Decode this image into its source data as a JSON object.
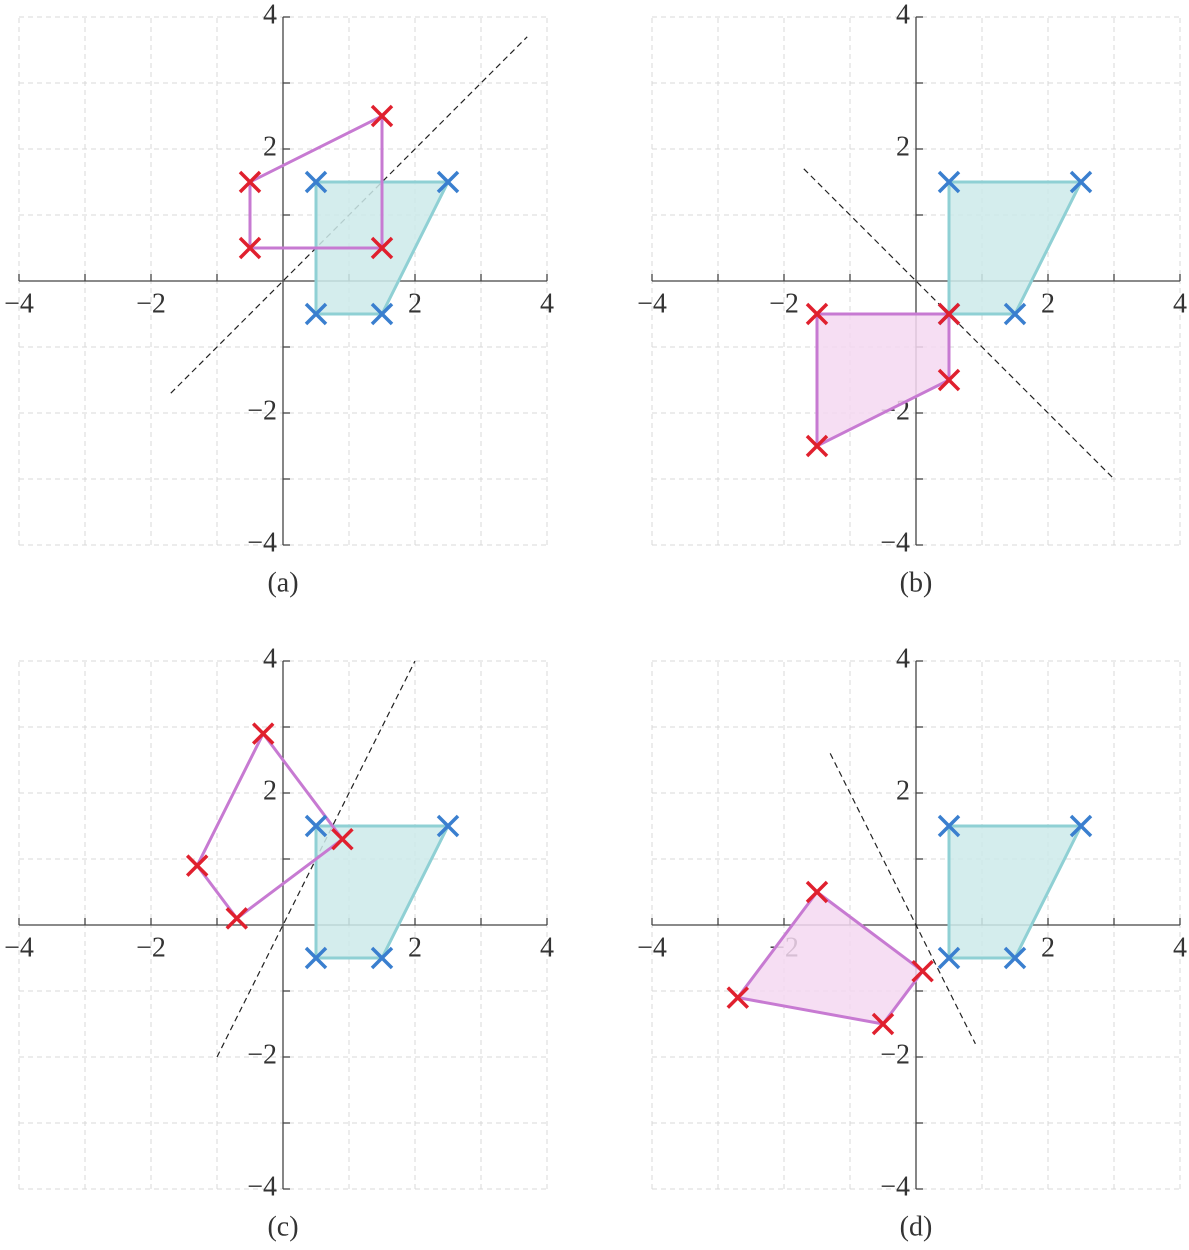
{
  "chart_data": [
    {
      "type": "scatter",
      "caption": "(a)",
      "xlim": [
        -4,
        4
      ],
      "ylim": [
        -4,
        4
      ],
      "xticks": [
        {
          "value": -4,
          "label": "−4"
        },
        {
          "value": -2,
          "label": "−2"
        },
        2,
        4
      ],
      "yticks": [
        {
          "value": -4,
          "label": "−4"
        },
        {
          "value": -2,
          "label": "−2"
        },
        2,
        4
      ],
      "grid": true,
      "grid_ticks": [
        -4,
        -3,
        -2,
        -1,
        1,
        2,
        3,
        4
      ],
      "series": [
        {
          "color": "#3a7fcf",
          "polygon_color": "#8fd0d4",
          "fill_color": "#cdeaea",
          "x": [
            0.5,
            2.5,
            1.5,
            0.5
          ],
          "y": [
            1.5,
            1.5,
            -0.5,
            -0.5
          ]
        },
        {
          "color": "#e0202e",
          "polygon_color": "#c77ad2",
          "x": [
            -0.5,
            1.5,
            1.5,
            -0.5
          ],
          "y": [
            1.5,
            2.5,
            0.5,
            0.5
          ]
        }
      ],
      "reflection_line": {
        "x": [
          -1.7,
          3.7
        ],
        "y": [
          -1.7,
          3.7
        ]
      }
    },
    {
      "type": "scatter",
      "caption": "(b)",
      "xlim": [
        -4,
        4
      ],
      "ylim": [
        -4,
        4
      ],
      "xticks": [
        {
          "value": -4,
          "label": "−4"
        },
        {
          "value": -2,
          "label": "−2"
        },
        2,
        4
      ],
      "yticks": [
        {
          "value": -4,
          "label": "−4"
        },
        {
          "value": -2,
          "label": "−2"
        },
        2,
        4
      ],
      "grid": true,
      "grid_ticks": [
        -4,
        -3,
        -2,
        -1,
        1,
        2,
        3,
        4
      ],
      "series": [
        {
          "color": "#3a7fcf",
          "polygon_color": "#8fd0d4",
          "fill_color": "#cdeaea",
          "x": [
            0.5,
            2.5,
            1.5,
            0.5
          ],
          "y": [
            1.5,
            1.5,
            -0.5,
            -0.5
          ]
        },
        {
          "color": "#e0202e",
          "polygon_color": "#c77ad2",
          "fill_color": "#f5d8f1",
          "x": [
            -1.5,
            -1.5,
            0.5,
            0.5
          ],
          "y": [
            -0.5,
            -2.5,
            -1.5,
            -0.5
          ]
        }
      ],
      "reflection_line": {
        "x": [
          -1.7,
          3
        ],
        "y": [
          1.7,
          -3
        ]
      }
    },
    {
      "type": "scatter",
      "caption": "(c)",
      "xlim": [
        -4,
        4
      ],
      "ylim": [
        -4,
        4
      ],
      "xticks": [
        {
          "value": -4,
          "label": "−4"
        },
        {
          "value": -2,
          "label": "−2"
        },
        2,
        4
      ],
      "yticks": [
        {
          "value": -4,
          "label": "−4"
        },
        {
          "value": -2,
          "label": "−2"
        },
        2,
        4
      ],
      "grid": true,
      "grid_ticks": [
        -4,
        -3,
        -2,
        -1,
        1,
        2,
        3,
        4
      ],
      "series": [
        {
          "color": "#3a7fcf",
          "polygon_color": "#8fd0d4",
          "fill_color": "#cdeaea",
          "x": [
            0.5,
            2.5,
            1.5,
            0.5
          ],
          "y": [
            1.5,
            1.5,
            -0.5,
            -0.5
          ]
        },
        {
          "color": "#e0202e",
          "polygon_color": "#c77ad2",
          "x": [
            0.9,
            -0.3,
            -1.3,
            -0.7
          ],
          "y": [
            1.3,
            2.9,
            0.9,
            0.1
          ]
        }
      ],
      "reflection_line": {
        "x": [
          -1,
          2
        ],
        "y": [
          -2,
          4
        ]
      }
    },
    {
      "type": "scatter",
      "caption": "(d)",
      "xlim": [
        -4,
        4
      ],
      "ylim": [
        -4,
        4
      ],
      "xticks": [
        {
          "value": -4,
          "label": "−4"
        },
        {
          "value": -2,
          "label": "−2"
        },
        2,
        4
      ],
      "yticks": [
        {
          "value": -4,
          "label": "−4"
        },
        {
          "value": -2,
          "label": "−2"
        },
        2,
        4
      ],
      "grid": true,
      "grid_ticks": [
        -4,
        -3,
        -2,
        -1,
        1,
        2,
        3,
        4
      ],
      "series": [
        {
          "color": "#3a7fcf",
          "polygon_color": "#8fd0d4",
          "fill_color": "#cdeaea",
          "x": [
            0.5,
            2.5,
            1.5,
            0.5
          ],
          "y": [
            1.5,
            1.5,
            -0.5,
            -0.5
          ]
        },
        {
          "color": "#e0202e",
          "polygon_color": "#c77ad2",
          "fill_color": "#f5d8f1",
          "x": [
            -1.5,
            -2.7,
            -0.5,
            0.1
          ],
          "y": [
            0.5,
            -1.1,
            -1.5,
            -0.7
          ]
        }
      ],
      "reflection_line": {
        "x": [
          -1.3,
          0.9
        ],
        "y": [
          2.6,
          -1.8
        ]
      }
    }
  ]
}
